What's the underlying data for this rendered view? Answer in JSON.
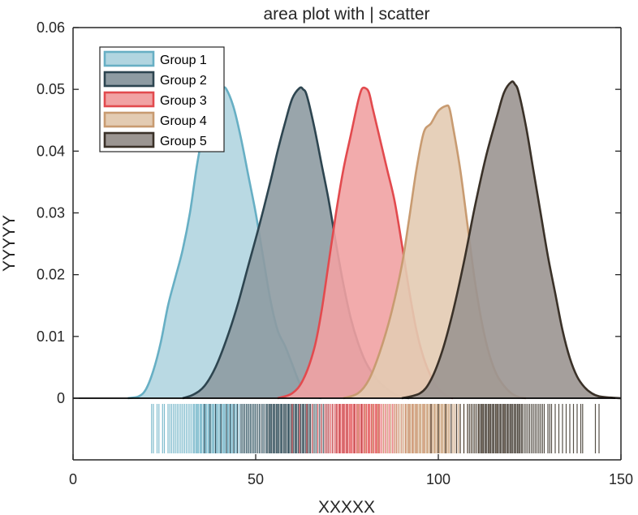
{
  "chart_data": {
    "type": "area",
    "title": "area plot with | scatter",
    "xlabel": "XXXXX",
    "ylabel": "YYYYY",
    "xlim": [
      0,
      150
    ],
    "ylim": [
      0,
      0.06
    ],
    "x_ticks": [
      0,
      50,
      100,
      150
    ],
    "x_tick_labels": [
      "0",
      "50",
      "100",
      "150"
    ],
    "y_ticks": [
      0,
      0.01,
      0.02,
      0.03,
      0.04,
      0.05,
      0.06
    ],
    "y_tick_labels": [
      "0",
      "0.01",
      "0.02",
      "0.03",
      "0.04",
      "0.05",
      "0.06"
    ],
    "grid": false,
    "legend_position": "top-left",
    "series": [
      {
        "name": "Group 1",
        "color": "#67AFC4",
        "fill": "#B1D5E0",
        "density": [
          [
            15,
            0
          ],
          [
            18,
            0.0003
          ],
          [
            20,
            0.0015
          ],
          [
            22,
            0.0045
          ],
          [
            24,
            0.009
          ],
          [
            26,
            0.015
          ],
          [
            28,
            0.0195
          ],
          [
            30,
            0.024
          ],
          [
            32,
            0.03
          ],
          [
            34,
            0.038
          ],
          [
            36,
            0.044
          ],
          [
            38,
            0.0475
          ],
          [
            40,
            0.0495
          ],
          [
            41,
            0.0502
          ],
          [
            42,
            0.05
          ],
          [
            44,
            0.047
          ],
          [
            46,
            0.042
          ],
          [
            48,
            0.036
          ],
          [
            50,
            0.03
          ],
          [
            52,
            0.023
          ],
          [
            54,
            0.016
          ],
          [
            56,
            0.011
          ],
          [
            58,
            0.0085
          ],
          [
            60,
            0.0055
          ],
          [
            62,
            0.0025
          ],
          [
            64,
            0.001
          ],
          [
            66,
            0.0003
          ],
          [
            68,
            0
          ]
        ],
        "rug": [
          21.5,
          22,
          23,
          23.5,
          24.5,
          25,
          26,
          26.5,
          27,
          27.5,
          28,
          28.5,
          29,
          29.5,
          30,
          30.5,
          31,
          31.5,
          32,
          32.5,
          33,
          33.3,
          33.7,
          34,
          34.3,
          34.7,
          35,
          35.3,
          35.7,
          36,
          36.3,
          36.6,
          37,
          37.3,
          37.6,
          38,
          38.3,
          38.6,
          39,
          39.3,
          39.6,
          40,
          40.3,
          40.6,
          41,
          41.3,
          41.6,
          42,
          42.3,
          42.6,
          43,
          43.3,
          43.6,
          44,
          44.3,
          44.7,
          45,
          45.5,
          46,
          46.5,
          47,
          47.5,
          48,
          48.5,
          49,
          49.5,
          50,
          51,
          52,
          53,
          54,
          55,
          56,
          57,
          59,
          61
        ]
      },
      {
        "name": "Group 2",
        "color": "#2D4550",
        "fill": "#8E9BA2",
        "density": [
          [
            30,
            0
          ],
          [
            33,
            0.0006
          ],
          [
            36,
            0.002
          ],
          [
            39,
            0.005
          ],
          [
            42,
            0.0095
          ],
          [
            45,
            0.015
          ],
          [
            48,
            0.0215
          ],
          [
            51,
            0.028
          ],
          [
            54,
            0.035
          ],
          [
            56,
            0.04
          ],
          [
            58,
            0.0445
          ],
          [
            60,
            0.0485
          ],
          [
            62,
            0.0502
          ],
          [
            63,
            0.05
          ],
          [
            64,
            0.049
          ],
          [
            66,
            0.044
          ],
          [
            68,
            0.038
          ],
          [
            70,
            0.032
          ],
          [
            72,
            0.025
          ],
          [
            74,
            0.0185
          ],
          [
            76,
            0.013
          ],
          [
            78,
            0.009
          ],
          [
            80,
            0.006
          ],
          [
            82,
            0.004
          ],
          [
            84,
            0.0025
          ],
          [
            86,
            0.0015
          ],
          [
            88,
            0.0007
          ],
          [
            90,
            0.0002
          ],
          [
            92,
            0
          ]
        ],
        "rug": [
          36,
          37.5,
          39,
          40.5,
          42,
          43,
          44,
          45,
          46,
          46.5,
          47,
          47.5,
          48,
          48.5,
          49,
          49.5,
          50,
          50.5,
          51,
          51.5,
          52,
          52.5,
          53,
          53.3,
          53.7,
          54,
          54.3,
          54.7,
          55,
          55.3,
          55.7,
          56,
          56.3,
          56.7,
          57,
          57.3,
          57.7,
          58,
          58.3,
          58.7,
          59,
          59.3,
          59.7,
          60,
          60.3,
          60.7,
          61,
          61.3,
          61.7,
          62,
          62.3,
          62.7,
          63,
          63.3,
          63.7,
          64,
          64.3,
          64.7,
          65,
          65.5,
          66,
          66.5,
          67,
          67.5,
          68,
          68.5,
          69,
          69.5,
          70,
          71,
          72,
          73,
          74,
          75,
          77,
          79
        ]
      },
      {
        "name": "Group 3",
        "color": "#E24A4E",
        "fill": "#F1A2A3",
        "density": [
          [
            56,
            0
          ],
          [
            60,
            0.0008
          ],
          [
            63,
            0.003
          ],
          [
            66,
            0.008
          ],
          [
            68,
            0.014
          ],
          [
            70,
            0.022
          ],
          [
            72,
            0.03
          ],
          [
            74,
            0.037
          ],
          [
            76,
            0.0425
          ],
          [
            78,
            0.048
          ],
          [
            79,
            0.05
          ],
          [
            80,
            0.0502
          ],
          [
            81,
            0.0495
          ],
          [
            82,
            0.047
          ],
          [
            84,
            0.042
          ],
          [
            86,
            0.037
          ],
          [
            88,
            0.032
          ],
          [
            90,
            0.025
          ],
          [
            92,
            0.0175
          ],
          [
            94,
            0.011
          ],
          [
            96,
            0.0065
          ],
          [
            98,
            0.0035
          ],
          [
            100,
            0.0015
          ],
          [
            102,
            0.0005
          ],
          [
            104,
            0
          ]
        ],
        "rug": [
          60,
          62,
          64,
          65.5,
          67,
          68,
          69,
          69.5,
          70,
          70.5,
          71,
          71.5,
          72,
          72.3,
          72.7,
          73,
          73.3,
          73.7,
          74,
          74.3,
          74.7,
          75,
          75.3,
          75.7,
          76,
          76.3,
          76.7,
          77,
          77.3,
          77.7,
          78,
          78.3,
          78.7,
          79,
          79.3,
          79.7,
          80,
          80.3,
          80.7,
          81,
          81.3,
          81.7,
          82,
          82.3,
          82.7,
          83,
          83.3,
          83.7,
          84,
          84.5,
          85,
          85.5,
          86,
          86.5,
          87,
          87.5,
          88,
          88.5,
          89,
          90,
          91,
          92,
          93,
          94,
          96,
          98
        ]
      },
      {
        "name": "Group 4",
        "color": "#C89B71",
        "fill": "#E3CBB2",
        "density": [
          [
            74,
            0
          ],
          [
            78,
            0.0008
          ],
          [
            81,
            0.003
          ],
          [
            84,
            0.0075
          ],
          [
            87,
            0.0135
          ],
          [
            90,
            0.0215
          ],
          [
            92,
            0.029
          ],
          [
            94,
            0.037
          ],
          [
            96,
            0.043
          ],
          [
            98,
            0.0445
          ],
          [
            100,
            0.0465
          ],
          [
            102,
            0.0473
          ],
          [
            103,
            0.047
          ],
          [
            104,
            0.044
          ],
          [
            106,
            0.037
          ],
          [
            108,
            0.028
          ],
          [
            110,
            0.019
          ],
          [
            112,
            0.012
          ],
          [
            114,
            0.007
          ],
          [
            116,
            0.0038
          ],
          [
            118,
            0.002
          ],
          [
            120,
            0.0008
          ],
          [
            122,
            0.0002
          ],
          [
            124,
            0
          ]
        ],
        "rug": [
          78,
          80,
          82,
          83.5,
          85,
          86,
          87,
          88,
          88.5,
          89,
          89.5,
          90,
          90.5,
          91,
          91.3,
          91.7,
          92,
          92.3,
          92.7,
          93,
          93.3,
          93.7,
          94,
          94.3,
          94.7,
          95,
          95.3,
          95.7,
          96,
          96.3,
          96.7,
          97,
          97.3,
          97.7,
          98,
          98.3,
          98.7,
          99,
          99.3,
          99.7,
          100,
          100.3,
          100.7,
          101,
          101.3,
          101.7,
          102,
          102.3,
          102.7,
          103,
          103.5,
          104,
          104.5,
          105,
          105.5,
          106,
          107,
          108,
          109,
          110,
          111,
          112,
          114,
          116,
          118
        ]
      },
      {
        "name": "Group 5",
        "color": "#3A3128",
        "fill": "#9B9591",
        "density": [
          [
            90,
            0
          ],
          [
            95,
            0.0008
          ],
          [
            98,
            0.003
          ],
          [
            101,
            0.0075
          ],
          [
            104,
            0.014
          ],
          [
            107,
            0.022
          ],
          [
            110,
            0.031
          ],
          [
            113,
            0.039
          ],
          [
            116,
            0.0455
          ],
          [
            118,
            0.0495
          ],
          [
            120,
            0.0512
          ],
          [
            121,
            0.0508
          ],
          [
            122,
            0.0495
          ],
          [
            124,
            0.044
          ],
          [
            126,
            0.037
          ],
          [
            128,
            0.03
          ],
          [
            130,
            0.023
          ],
          [
            132,
            0.017
          ],
          [
            134,
            0.011
          ],
          [
            136,
            0.0065
          ],
          [
            138,
            0.0035
          ],
          [
            140,
            0.0018
          ],
          [
            142,
            0.0008
          ],
          [
            144,
            0.0003
          ],
          [
            147,
            0.0001
          ],
          [
            150,
            0
          ]
        ],
        "rug": [
          98,
          100,
          102,
          103.5,
          105,
          106,
          107,
          108,
          108.5,
          109,
          109.5,
          110,
          110.5,
          111,
          111.3,
          111.7,
          112,
          112.3,
          112.7,
          113,
          113.3,
          113.7,
          114,
          114.3,
          114.7,
          115,
          115.3,
          115.7,
          116,
          116.3,
          116.7,
          117,
          117.3,
          117.7,
          118,
          118.3,
          118.7,
          119,
          119.3,
          119.7,
          120,
          120.3,
          120.7,
          121,
          121.3,
          121.7,
          122,
          122.3,
          122.7,
          123,
          123.5,
          124,
          124.5,
          125,
          125.5,
          126,
          126.5,
          127,
          127.5,
          128,
          128.5,
          129,
          130,
          130.5,
          131,
          132,
          133,
          134,
          135,
          136,
          137,
          138,
          139,
          139.5,
          143,
          144
        ]
      }
    ]
  }
}
